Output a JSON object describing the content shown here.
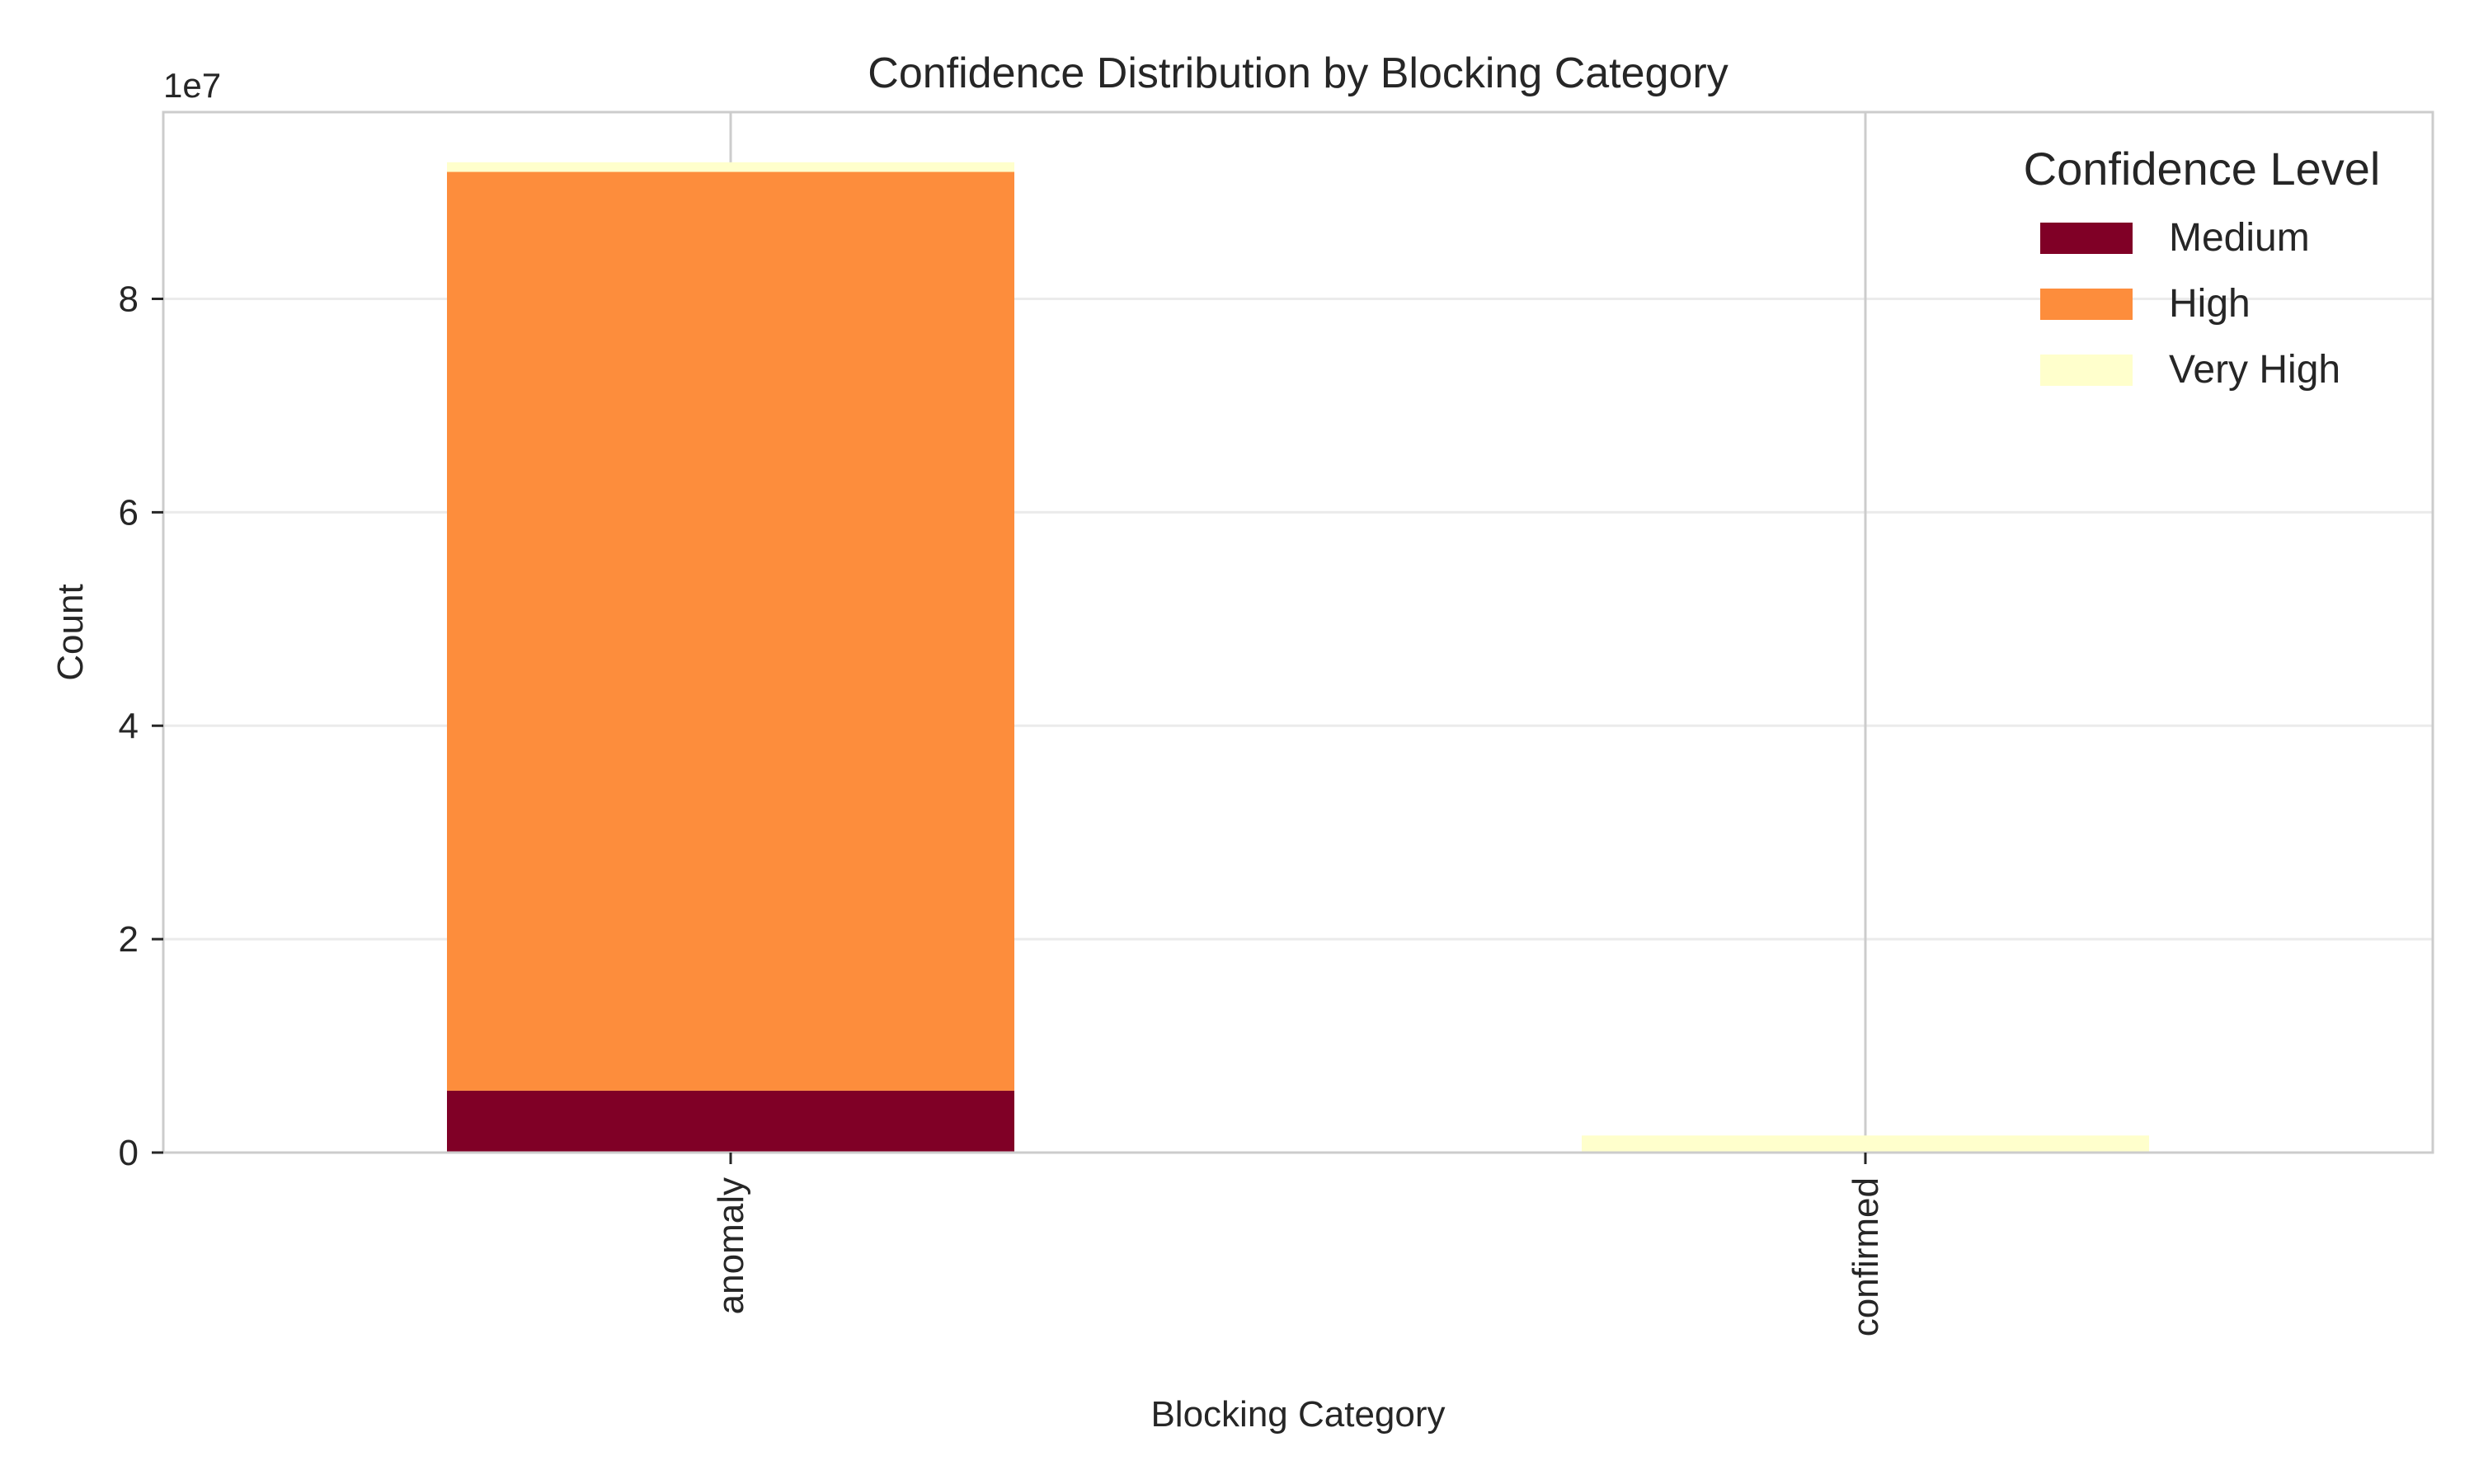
{
  "chart_data": {
    "type": "bar",
    "stacked": true,
    "title": "Confidence Distribution by Blocking Category",
    "xlabel": "Blocking Category",
    "ylabel": "Count",
    "y_scale_label": "1e7",
    "categories": [
      "anomaly",
      "confirmed"
    ],
    "series": [
      {
        "name": "Medium",
        "color": "#800026",
        "values": [
          5800000,
          0
        ]
      },
      {
        "name": "High",
        "color": "#fd8d3c",
        "values": [
          86100000,
          0
        ]
      },
      {
        "name": "Very High",
        "color": "#ffffcc",
        "values": [
          900000,
          1600000
        ]
      }
    ],
    "ylim": [
      0,
      97500000
    ],
    "yticks": [
      0,
      20000000,
      40000000,
      60000000,
      80000000
    ],
    "ytick_labels": [
      "0",
      "2",
      "4",
      "6",
      "8"
    ],
    "legend": {
      "title": "Confidence Level",
      "position": "top-right"
    },
    "grid": true
  }
}
